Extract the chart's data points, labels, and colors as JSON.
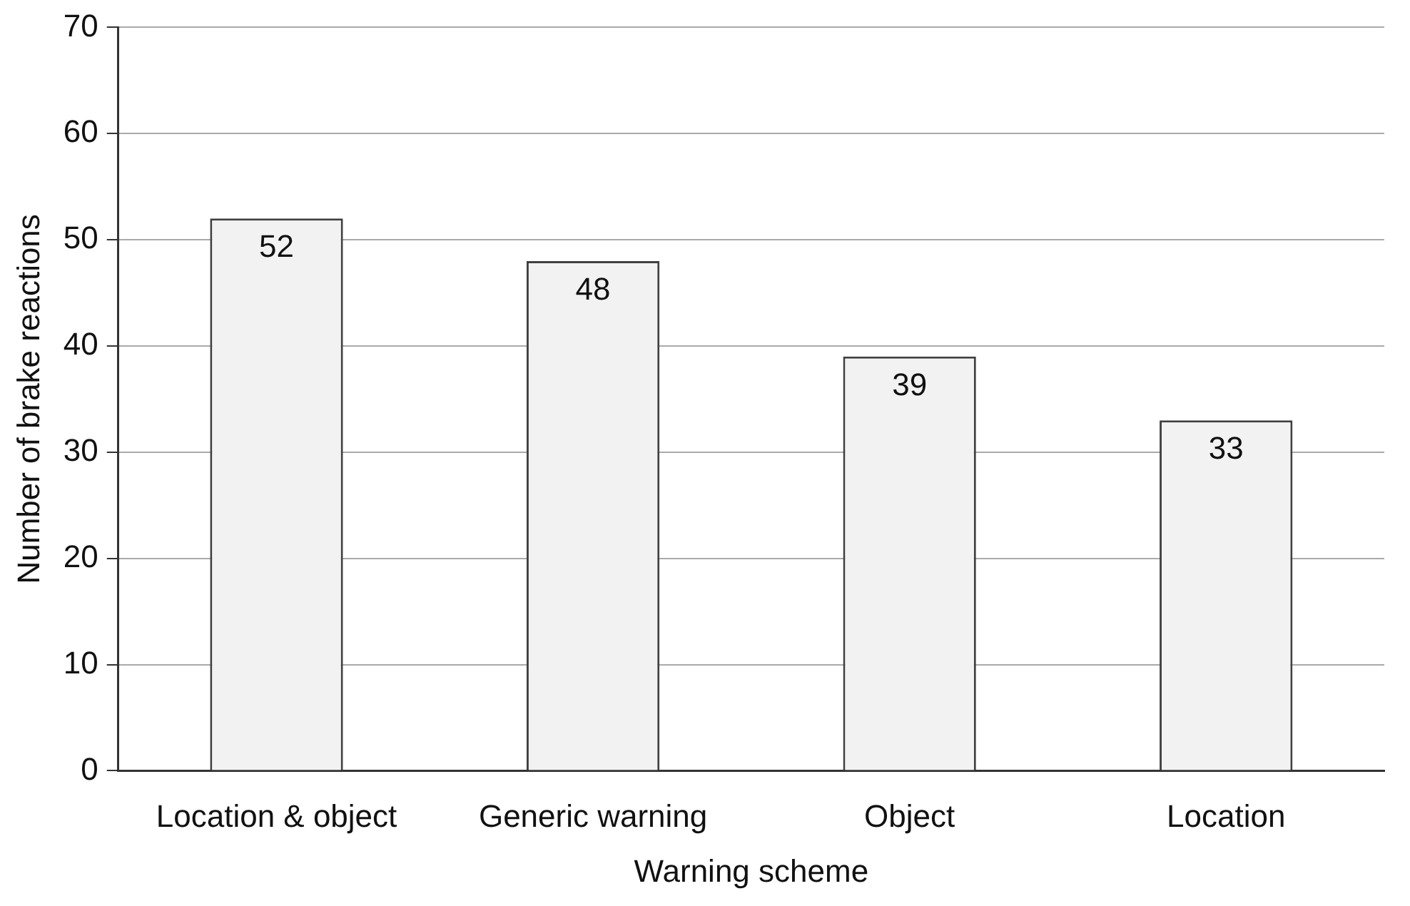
{
  "chart_data": {
    "type": "bar",
    "xlabel": "Warning scheme",
    "ylabel": "Number of brake reactions",
    "categories": [
      "Location & object",
      "Generic warning",
      "Object",
      "Location"
    ],
    "values": [
      52,
      48,
      39,
      33
    ],
    "color": "#f2f2f2",
    "ylim": [
      0,
      70
    ],
    "yticks": [
      0,
      10,
      20,
      30,
      40,
      50,
      60,
      70
    ],
    "grid": "y",
    "data_labels": true
  }
}
